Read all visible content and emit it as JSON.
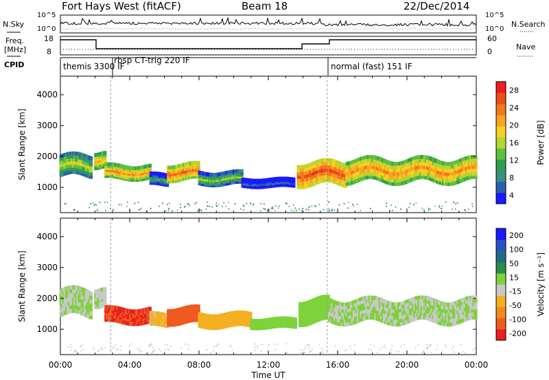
{
  "header": {
    "radar": "Fort Hays West (fitACF)",
    "beam": "Beam 18",
    "date": "22/Dec/2014"
  },
  "top_strip": {
    "nsky_label": "N.Sky",
    "nsky_ticks": [
      "10^5",
      "10^0"
    ],
    "nsearch_label": "N.Search",
    "nsearch_ticks": [
      "10^5",
      "10^0"
    ],
    "freq_label": "Freq.",
    "freq_unit": "[MHz]",
    "freq_ticks": [
      "18",
      "8"
    ],
    "nave_label": "Nave",
    "nave_ticks": [
      "60",
      "0"
    ],
    "cpid_label": "CPID",
    "modes": [
      "themis 3300 IF",
      "rbsp CT-trig 220 IF",
      "normal (fast) 151 IF"
    ]
  },
  "colors": {
    "power_scale": [
      "#1a1aff",
      "#2a5fb0",
      "#3a8f80",
      "#2f9f4f",
      "#5fbf3f",
      "#b8d430",
      "#f7d020",
      "#f5a623",
      "#f07820",
      "#ee4c1a",
      "#ee1c1c"
    ],
    "velocity_scale": [
      "#1a1aff",
      "#2a52c8",
      "#226b8a",
      "#2a8c4a",
      "#7ed23a",
      "#c8c8c8",
      "#f5b020",
      "#f08a20",
      "#ef5a20",
      "#e82020"
    ]
  },
  "chart_data": [
    {
      "type": "heatmap",
      "panel": "power",
      "ylabel": "Slant Range [km]",
      "ylim": [
        180,
        4600
      ],
      "yticks": [
        1000,
        2000,
        3000,
        4000
      ],
      "x_ticklabels": [
        "00:00",
        "04:00",
        "08:00",
        "12:00",
        "16:00",
        "20:00",
        "00:00"
      ],
      "xlim_hours": [
        0,
        24
      ],
      "colorbar_label": "Power [dB]",
      "colorbar_ticks": [
        28,
        24,
        20,
        16,
        12,
        8,
        4
      ],
      "colorbar_range": [
        0,
        30
      ],
      "echo_bands": [
        {
          "t_start": 0.0,
          "t_end": 1.8,
          "range_center": 1700,
          "range_halfwidth": 350,
          "value": 16
        },
        {
          "t_start": 2.0,
          "t_end": 2.6,
          "range_center": 1900,
          "range_halfwidth": 250,
          "value": 20
        },
        {
          "t_start": 2.6,
          "t_end": 5.2,
          "range_center": 1500,
          "range_halfwidth": 220,
          "value": 22
        },
        {
          "t_start": 5.2,
          "t_end": 6.2,
          "range_center": 1250,
          "range_halfwidth": 180,
          "value": 10
        },
        {
          "t_start": 6.2,
          "t_end": 8.0,
          "range_center": 1500,
          "range_halfwidth": 260,
          "value": 24
        },
        {
          "t_start": 8.0,
          "t_end": 10.5,
          "range_center": 1300,
          "range_halfwidth": 200,
          "value": 14
        },
        {
          "t_start": 10.5,
          "t_end": 13.5,
          "range_center": 1150,
          "range_halfwidth": 120,
          "value": 6
        },
        {
          "t_start": 13.7,
          "t_end": 16.5,
          "range_center": 1450,
          "range_halfwidth": 380,
          "value": 26
        },
        {
          "t_start": 16.5,
          "t_end": 24.0,
          "range_center": 1550,
          "range_halfwidth": 380,
          "value": 22
        }
      ]
    },
    {
      "type": "heatmap",
      "panel": "velocity",
      "ylabel": "Slant Range [km]",
      "xlabel": "Time UT",
      "ylim": [
        180,
        4600
      ],
      "yticks": [
        1000,
        2000,
        3000,
        4000
      ],
      "x_ticklabels": [
        "00:00",
        "04:00",
        "08:00",
        "12:00",
        "16:00",
        "20:00",
        "00:00"
      ],
      "xlim_hours": [
        0,
        24
      ],
      "colorbar_label": "Velocity [m s⁻¹]",
      "colorbar_ticks": [
        200,
        100,
        50,
        15,
        -15,
        -50,
        -100,
        -200
      ],
      "colorbar_range": [
        -250,
        250
      ],
      "echo_bands": [
        {
          "t_start": 0.0,
          "t_end": 1.8,
          "range_center": 1850,
          "range_halfwidth": 450,
          "value": 0
        },
        {
          "t_start": 2.0,
          "t_end": 2.6,
          "range_center": 2050,
          "range_halfwidth": 300,
          "value": -10
        },
        {
          "t_start": 2.6,
          "t_end": 5.2,
          "range_center": 1450,
          "range_halfwidth": 240,
          "value": -200
        },
        {
          "t_start": 5.2,
          "t_end": 6.2,
          "range_center": 1300,
          "range_halfwidth": 200,
          "value": -60
        },
        {
          "t_start": 6.2,
          "t_end": 8.0,
          "range_center": 1450,
          "range_halfwidth": 260,
          "value": -180
        },
        {
          "t_start": 8.0,
          "t_end": 11.0,
          "range_center": 1300,
          "range_halfwidth": 220,
          "value": -70
        },
        {
          "t_start": 11.0,
          "t_end": 13.6,
          "range_center": 1200,
          "range_halfwidth": 140,
          "value": 30
        },
        {
          "t_start": 13.8,
          "t_end": 15.5,
          "range_center": 1600,
          "range_halfwidth": 400,
          "value": 30
        },
        {
          "t_start": 15.5,
          "t_end": 24.0,
          "range_center": 1600,
          "range_halfwidth": 380,
          "value": 0
        }
      ]
    }
  ]
}
